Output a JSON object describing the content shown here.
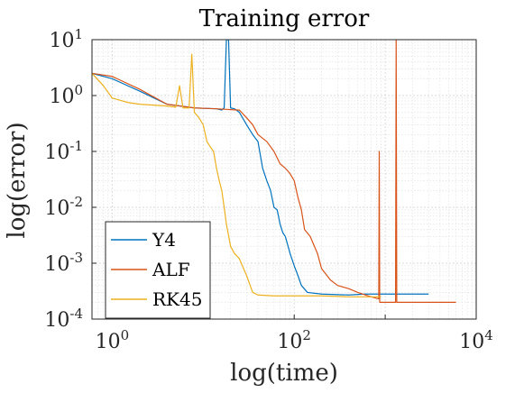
{
  "chart_data": {
    "type": "line",
    "title": "Training error",
    "xlabel": "log(time)",
    "ylabel": "log(error)",
    "xscale": "log",
    "yscale": "log",
    "xlim": [
      0.6,
      10000
    ],
    "ylim": [
      0.0001,
      10
    ],
    "grid": true,
    "minor_grid": true,
    "legend_position": "bottom-left",
    "x_ticks": [
      {
        "value": 1,
        "base": "10",
        "exp": "0"
      },
      {
        "value": 100,
        "base": "10",
        "exp": "2"
      },
      {
        "value": 10000,
        "base": "10",
        "exp": "4"
      }
    ],
    "y_ticks": [
      {
        "value": 10,
        "base": "10",
        "exp": "1"
      },
      {
        "value": 1,
        "base": "10",
        "exp": "0"
      },
      {
        "value": 0.1,
        "base": "10",
        "exp": "-1"
      },
      {
        "value": 0.01,
        "base": "10",
        "exp": "-2"
      },
      {
        "value": 0.001,
        "base": "10",
        "exp": "-3"
      },
      {
        "value": 0.0001,
        "base": "10",
        "exp": "-4"
      }
    ],
    "series": [
      {
        "name": "Y4",
        "color": "#0072BD",
        "points": [
          [
            0.6,
            2.5
          ],
          [
            1,
            2.0
          ],
          [
            2,
            1.2
          ],
          [
            4,
            0.7
          ],
          [
            8,
            0.6
          ],
          [
            14,
            0.58
          ],
          [
            16,
            0.55
          ],
          [
            17,
            0.6
          ],
          [
            18,
            10
          ],
          [
            19,
            10
          ],
          [
            20,
            0.6
          ],
          [
            22,
            0.58
          ],
          [
            25,
            0.5
          ],
          [
            30,
            0.3
          ],
          [
            35,
            0.2
          ],
          [
            40,
            0.15
          ],
          [
            45,
            0.05
          ],
          [
            50,
            0.03
          ],
          [
            55,
            0.02
          ],
          [
            60,
            0.01
          ],
          [
            65,
            0.009
          ],
          [
            70,
            0.005
          ],
          [
            75,
            0.0035
          ],
          [
            80,
            0.003
          ],
          [
            90,
            0.0015
          ],
          [
            100,
            0.0009
          ],
          [
            110,
            0.0006
          ],
          [
            120,
            0.0004
          ],
          [
            140,
            0.0003
          ],
          [
            200,
            0.00028
          ],
          [
            400,
            0.00027
          ],
          [
            600,
            0.00028
          ],
          [
            800,
            0.00028
          ],
          [
            1000,
            0.00028
          ],
          [
            2000,
            0.00028
          ],
          [
            3000,
            0.00028
          ]
        ]
      },
      {
        "name": "ALF",
        "color": "#D95319",
        "points": [
          [
            0.6,
            2.5
          ],
          [
            1,
            2.2
          ],
          [
            2,
            1.3
          ],
          [
            4,
            0.7
          ],
          [
            8,
            0.6
          ],
          [
            14,
            0.58
          ],
          [
            20,
            0.56
          ],
          [
            25,
            0.55
          ],
          [
            30,
            0.4
          ],
          [
            35,
            0.3
          ],
          [
            40,
            0.2
          ],
          [
            50,
            0.15
          ],
          [
            60,
            0.1
          ],
          [
            70,
            0.06
          ],
          [
            80,
            0.05
          ],
          [
            90,
            0.04
          ],
          [
            100,
            0.03
          ],
          [
            110,
            0.015
          ],
          [
            120,
            0.009
          ],
          [
            130,
            0.004
          ],
          [
            150,
            0.003
          ],
          [
            180,
            0.0015
          ],
          [
            200,
            0.0008
          ],
          [
            250,
            0.0005
          ],
          [
            300,
            0.0004
          ],
          [
            400,
            0.00035
          ],
          [
            500,
            0.0003
          ],
          [
            700,
            0.00025
          ],
          [
            850,
            0.00023
          ],
          [
            860,
            0.1
          ],
          [
            870,
            0.0002
          ],
          [
            1300,
            0.0002
          ],
          [
            1320,
            10
          ],
          [
            1340,
            0.0002
          ],
          [
            3000,
            0.0002
          ],
          [
            6000,
            0.0002
          ]
        ]
      },
      {
        "name": "RK45",
        "color": "#EDB120",
        "points": [
          [
            0.6,
            2.5
          ],
          [
            0.8,
            1.5
          ],
          [
            1,
            0.9
          ],
          [
            1.5,
            0.75
          ],
          [
            2,
            0.7
          ],
          [
            4,
            0.65
          ],
          [
            5,
            0.62
          ],
          [
            5.5,
            1.5
          ],
          [
            6,
            0.6
          ],
          [
            7,
            0.6
          ],
          [
            7.5,
            5.5
          ],
          [
            8,
            0.5
          ],
          [
            9,
            0.4
          ],
          [
            10,
            0.3
          ],
          [
            11,
            0.15
          ],
          [
            12,
            0.12
          ],
          [
            13,
            0.1
          ],
          [
            14,
            0.05
          ],
          [
            15,
            0.03
          ],
          [
            16,
            0.02
          ],
          [
            17,
            0.01
          ],
          [
            18,
            0.005
          ],
          [
            20,
            0.002
          ],
          [
            22,
            0.0015
          ],
          [
            25,
            0.0012
          ],
          [
            30,
            0.0006
          ],
          [
            35,
            0.0003
          ],
          [
            40,
            0.00027
          ],
          [
            60,
            0.00026
          ],
          [
            100,
            0.00026
          ],
          [
            200,
            0.00026
          ],
          [
            400,
            0.00025
          ],
          [
            800,
            0.00025
          ],
          [
            900,
            0.00025
          ]
        ]
      }
    ]
  }
}
